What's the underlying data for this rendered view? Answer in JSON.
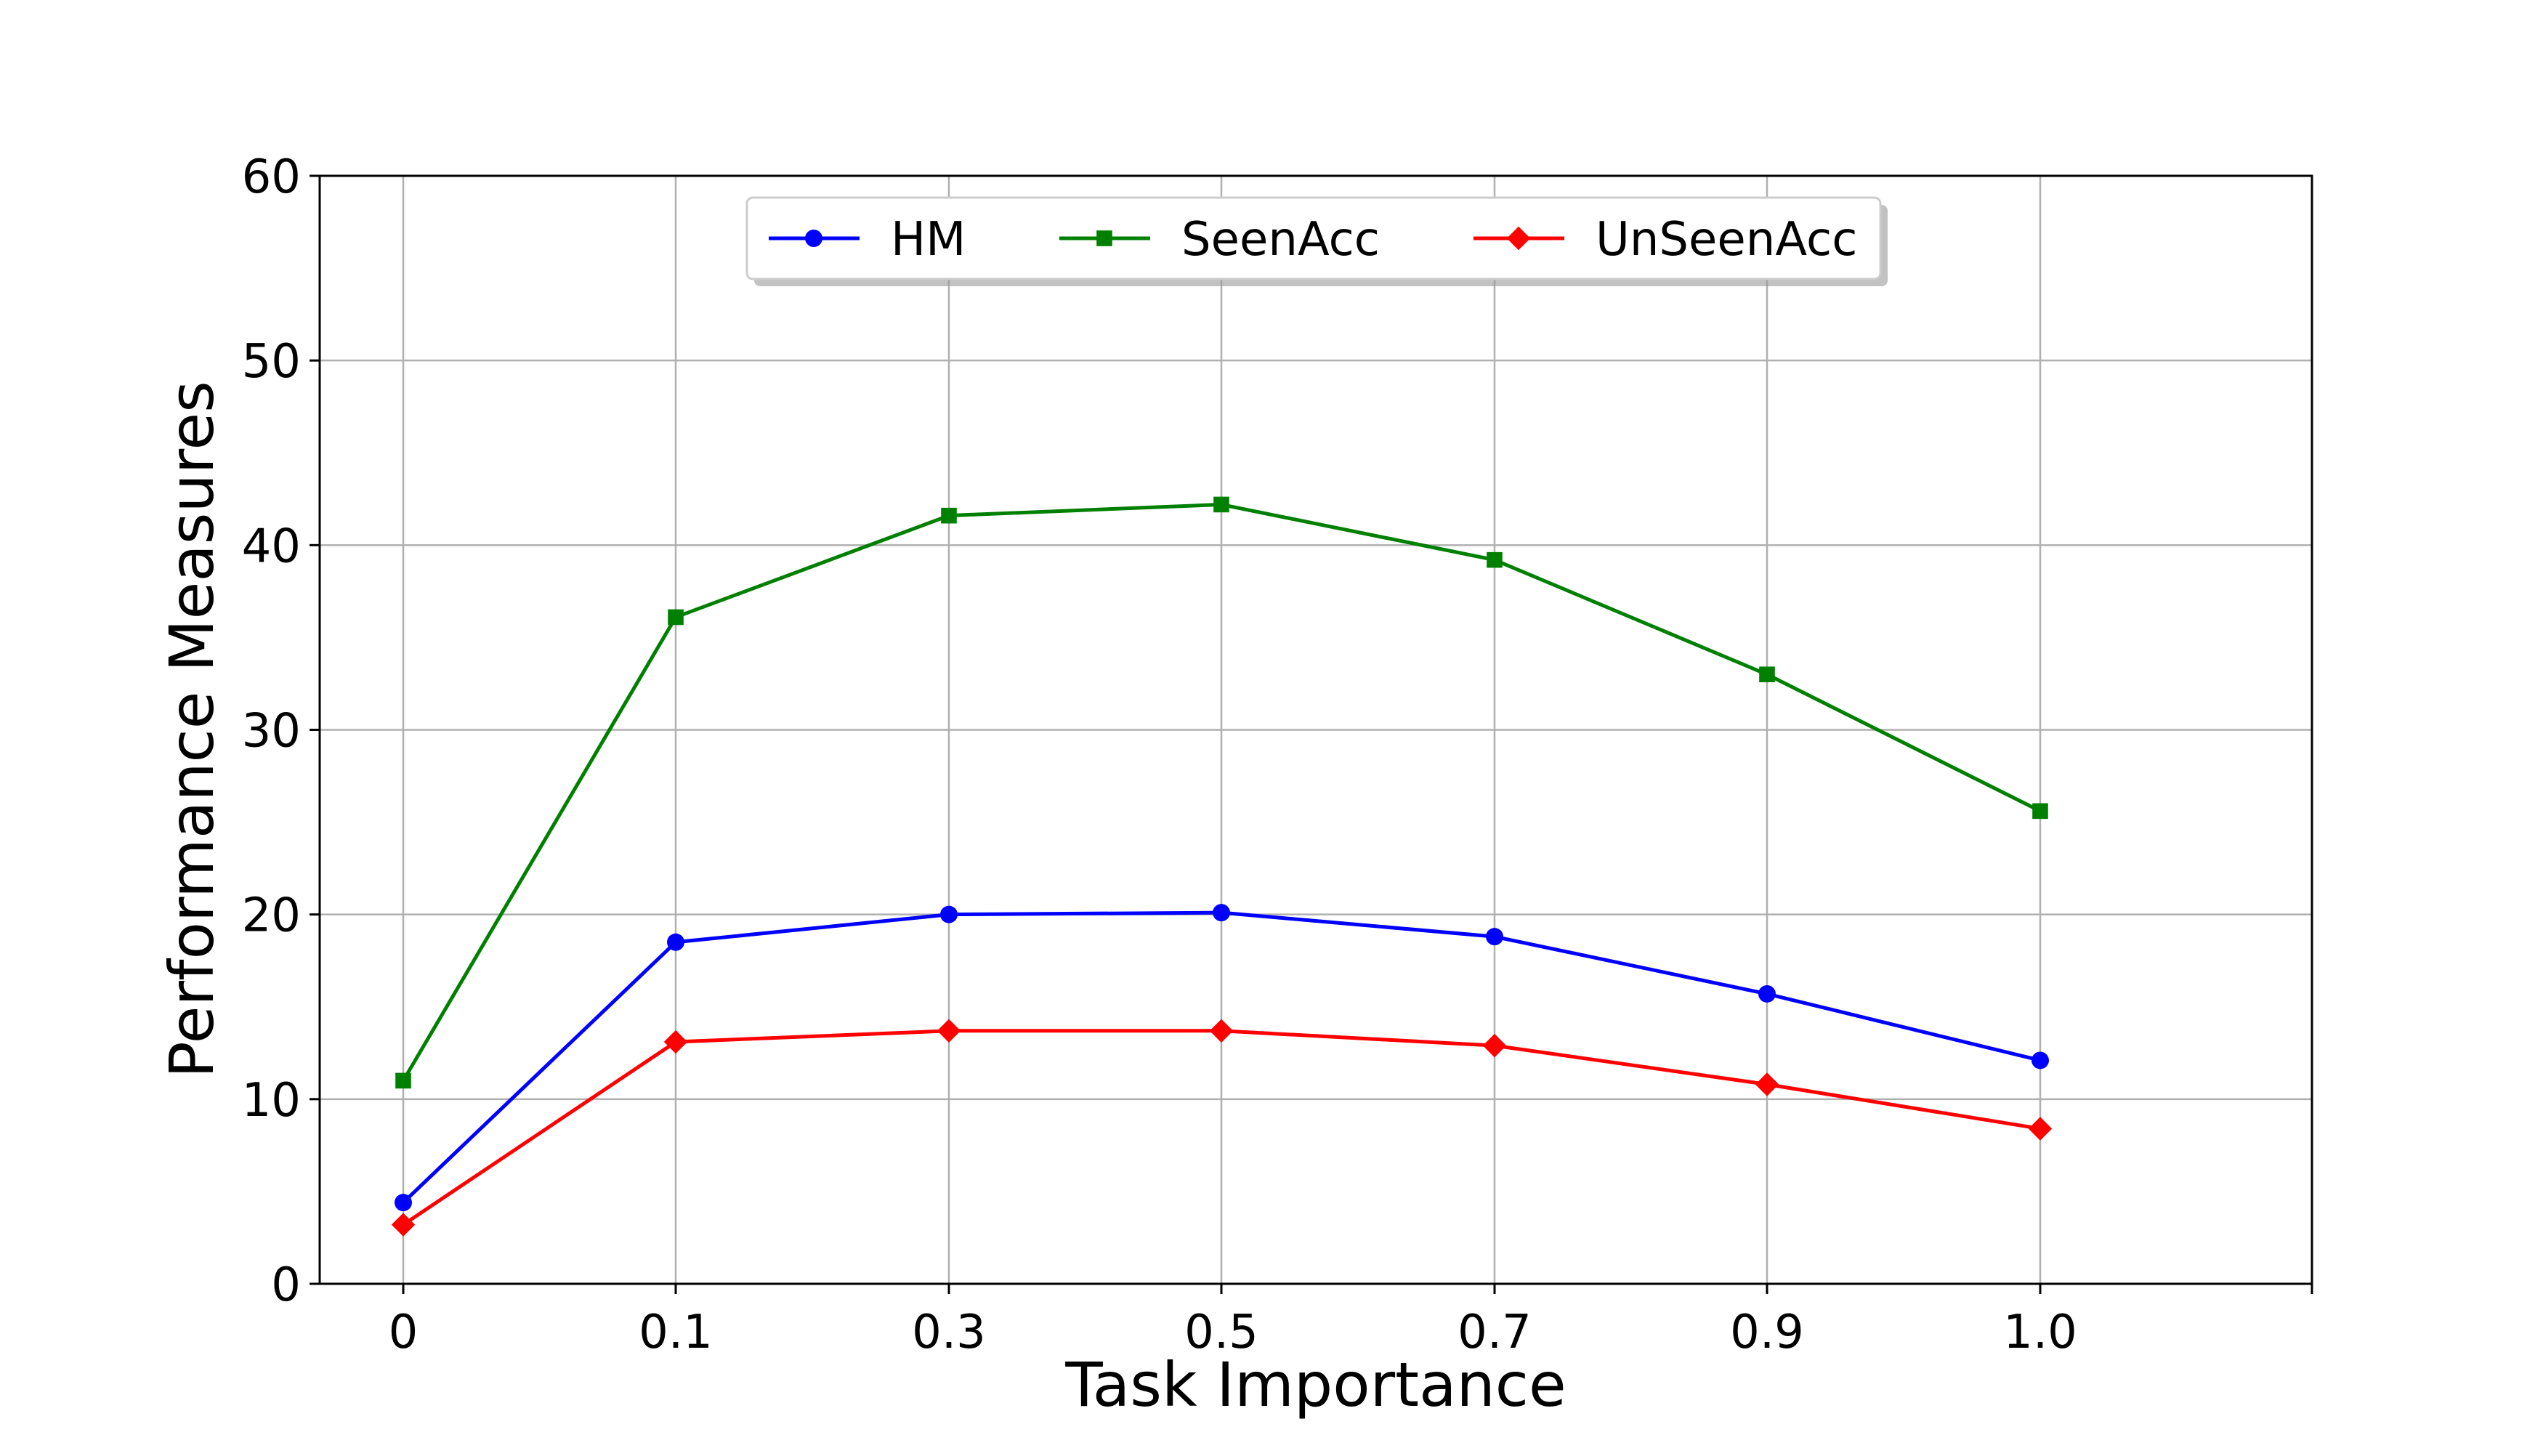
{
  "chart_data": {
    "type": "line",
    "title": "",
    "xlabel": "Task Importance",
    "ylabel": "Performance Measures",
    "categories": [
      "0",
      "0.1",
      "0.3",
      "0.5",
      "0.7",
      "0.9",
      "1.0"
    ],
    "ylim": [
      0,
      60
    ],
    "yticks": [
      "0",
      "10",
      "20",
      "30",
      "40",
      "50",
      "60"
    ],
    "grid": true,
    "legend_position": "top-center",
    "series": [
      {
        "name": "HM",
        "color": "#0000ff",
        "marker": "circle",
        "values": [
          4.4,
          18.5,
          20.0,
          20.1,
          18.8,
          15.7,
          12.1
        ]
      },
      {
        "name": "SeenAcc",
        "color": "#008000",
        "marker": "square",
        "values": [
          11.0,
          36.1,
          41.6,
          42.2,
          39.2,
          33.0,
          25.6
        ]
      },
      {
        "name": "UnSeenAcc",
        "color": "#ff0000",
        "marker": "diamond",
        "values": [
          3.2,
          13.1,
          13.7,
          13.7,
          12.9,
          10.8,
          8.4
        ]
      }
    ]
  }
}
